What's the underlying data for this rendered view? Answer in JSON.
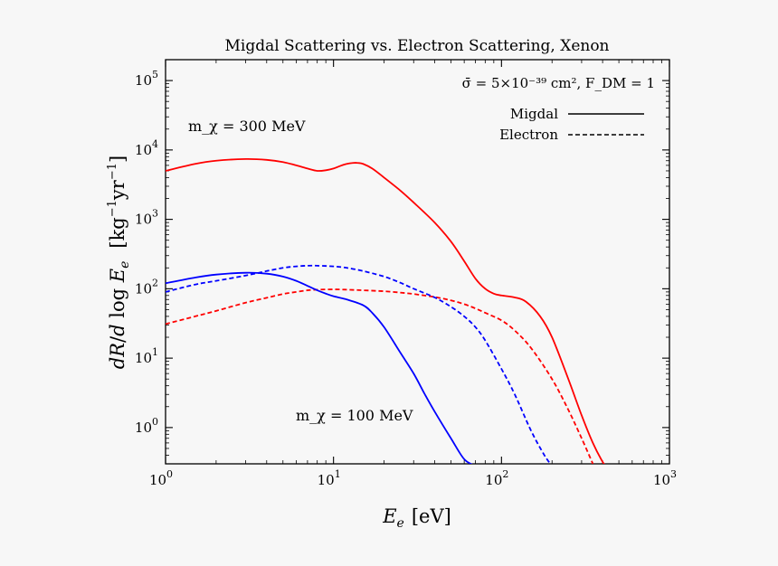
{
  "chart_data": {
    "type": "line",
    "title": "Migdal Scattering vs. Electron Scattering, Xenon",
    "xlabel": "E_e [eV]",
    "xlabel_parts": {
      "var": "E",
      "sub": "e",
      "unit": "[eV]"
    },
    "ylabel": "dR/d log E_e [kg^-1 yr^-1]",
    "xscale": "log",
    "yscale": "log",
    "xlim": [
      1,
      1000
    ],
    "ylim": [
      0.3,
      200000
    ],
    "x_ticks": [
      {
        "base": "10",
        "exp": "0",
        "value": 1
      },
      {
        "base": "10",
        "exp": "1",
        "value": 10
      },
      {
        "base": "10",
        "exp": "2",
        "value": 100
      },
      {
        "base": "10",
        "exp": "3",
        "value": 1000
      }
    ],
    "y_ticks": [
      {
        "base": "10",
        "exp": "0",
        "value": 1
      },
      {
        "base": "10",
        "exp": "1",
        "value": 10
      },
      {
        "base": "10",
        "exp": "2",
        "value": 100
      },
      {
        "base": "10",
        "exp": "3",
        "value": 1000
      },
      {
        "base": "10",
        "exp": "4",
        "value": 10000
      },
      {
        "base": "10",
        "exp": "5",
        "value": 100000
      }
    ],
    "legend": {
      "placement": "top-right",
      "header": "σ̄ = 5×10⁻³⁹ cm², F_DM = 1",
      "entries": [
        {
          "label": "Migdal",
          "style": "solid"
        },
        {
          "label": "Electron",
          "style": "dashed"
        }
      ]
    },
    "annotations": [
      {
        "text": "m_χ = 300 MeV",
        "color": "#ff0000"
      },
      {
        "text": "m_χ = 100 MeV",
        "color": "#0000ff"
      }
    ],
    "colors": {
      "red": "#ff0000",
      "blue": "#0000ff"
    },
    "series": [
      {
        "name": "Migdal, m_χ = 300 MeV",
        "color": "#ff0000",
        "style": "solid",
        "x": [
          1,
          1.5,
          2,
          3,
          4,
          5,
          6,
          7,
          8,
          9,
          10,
          11,
          12,
          13,
          14,
          15,
          17,
          20,
          25,
          30,
          40,
          50,
          60,
          70,
          80,
          90,
          100,
          120,
          140,
          170,
          200,
          250,
          300,
          350,
          400,
          420
        ],
        "y": [
          5000,
          6300,
          7000,
          7400,
          7200,
          6700,
          6000,
          5400,
          5000,
          5100,
          5400,
          5900,
          6300,
          6500,
          6500,
          6300,
          5400,
          4000,
          2600,
          1750,
          900,
          480,
          250,
          140,
          100,
          85,
          80,
          75,
          65,
          40,
          20,
          5,
          1.5,
          0.6,
          0.32,
          0.28
        ]
      },
      {
        "name": "Electron, m_χ = 300 MeV",
        "color": "#ff0000",
        "style": "dashed",
        "x": [
          1,
          1.5,
          2,
          3,
          4,
          5,
          6,
          7,
          8,
          10,
          12,
          15,
          20,
          25,
          30,
          40,
          50,
          60,
          70,
          80,
          100,
          120,
          150,
          200,
          250,
          300,
          350
        ],
        "y": [
          31,
          40,
          48,
          63,
          74,
          84,
          90,
          95,
          97,
          98,
          97,
          95,
          92,
          88,
          84,
          76,
          68,
          60,
          52,
          45,
          35,
          25,
          14,
          5,
          1.8,
          0.7,
          0.3
        ]
      },
      {
        "name": "Migdal, m_χ = 100 MeV",
        "color": "#0000ff",
        "style": "solid",
        "x": [
          1,
          1.5,
          2,
          3,
          4,
          5,
          6,
          7,
          8,
          9,
          10,
          12,
          15,
          17,
          20,
          25,
          30,
          35,
          40,
          50,
          60,
          70
        ],
        "y": [
          120,
          145,
          160,
          170,
          165,
          150,
          130,
          110,
          95,
          85,
          78,
          70,
          58,
          45,
          28,
          12,
          6,
          3,
          1.7,
          0.7,
          0.35,
          0.28
        ]
      },
      {
        "name": "Electron, m_χ = 100 MeV",
        "color": "#0000ff",
        "style": "dashed",
        "x": [
          1,
          1.5,
          2,
          3,
          4,
          5,
          6,
          7,
          8,
          10,
          12,
          15,
          20,
          25,
          30,
          40,
          50,
          60,
          70,
          80,
          100,
          120,
          150,
          180,
          200
        ],
        "y": [
          90,
          115,
          130,
          155,
          180,
          200,
          210,
          215,
          215,
          210,
          200,
          180,
          150,
          122,
          100,
          75,
          55,
          40,
          28,
          18,
          7,
          3,
          0.9,
          0.4,
          0.28
        ]
      }
    ]
  }
}
